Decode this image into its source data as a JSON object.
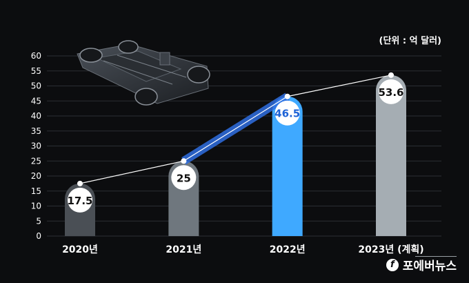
{
  "chart_data": {
    "type": "bar",
    "title": "",
    "unit_label": "(단위 : 억 달러)",
    "categories": [
      "2020년",
      "2021년",
      "2022년",
      "2023년 (계획)"
    ],
    "values": [
      17.5,
      25,
      46.5,
      53.6
    ],
    "value_labels": [
      "17.5",
      "25",
      "46.5",
      "53.6"
    ],
    "highlight_index": 2,
    "bar_colors": [
      "#4a4f55",
      "#6f777e",
      "#3fa9ff",
      "#a5adb3"
    ],
    "highlight_label_color": "#1e63d6",
    "line_overlay": true,
    "ylim": [
      0,
      60
    ],
    "yticks": [
      0,
      5,
      10,
      15,
      20,
      25,
      30,
      35,
      40,
      45,
      50,
      55,
      60
    ],
    "grid": true,
    "xlabel": "",
    "ylabel": ""
  },
  "decor": {
    "image_icon": "ev-chassis-platform-image"
  },
  "watermark": {
    "icon": "f-logo-icon",
    "text": "포에버뉴스"
  }
}
